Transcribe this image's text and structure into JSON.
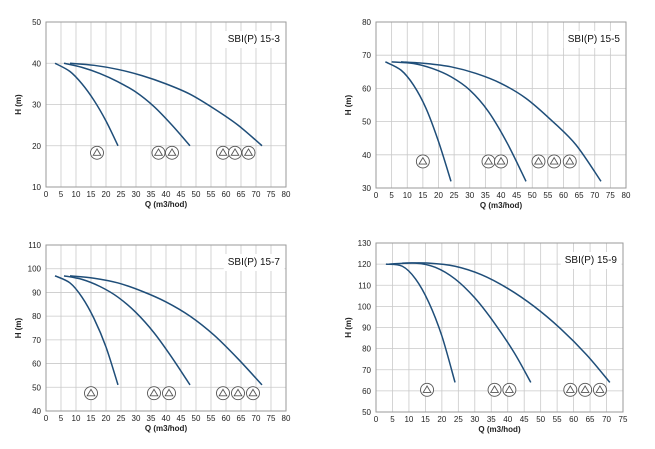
{
  "colors": {
    "curve": "#1f4e79",
    "grid": "#c9c9c9",
    "frame": "#9a9a9a",
    "marker": "#555555"
  },
  "chart_data": [
    {
      "type": "line",
      "title": "SBI(P) 15-3",
      "xlabel": "Q (m3/hod)",
      "ylabel": "H (m)",
      "xlim": [
        0,
        80
      ],
      "ylim": [
        10,
        50
      ],
      "xticks": [
        0,
        5,
        10,
        15,
        20,
        25,
        30,
        35,
        40,
        45,
        50,
        55,
        60,
        65,
        70,
        75,
        80
      ],
      "yticks": [
        10,
        20,
        30,
        40,
        50
      ],
      "grid": true,
      "series": [
        {
          "x": [
            3,
            8,
            12,
            16,
            20,
            24
          ],
          "y": [
            40,
            38,
            35,
            31,
            26,
            20
          ]
        },
        {
          "x": [
            6,
            12,
            18,
            24,
            30,
            36,
            42,
            48
          ],
          "y": [
            40,
            39,
            37.5,
            35.5,
            33,
            29.5,
            25,
            20
          ]
        },
        {
          "x": [
            8,
            16,
            24,
            32,
            40,
            48,
            56,
            64,
            72
          ],
          "y": [
            40,
            39.5,
            38.5,
            37,
            35,
            32.5,
            29,
            25,
            20
          ]
        }
      ],
      "markers": [
        {
          "x": 17,
          "y": 18.3
        },
        {
          "x": 37.5,
          "y": 18.3
        },
        {
          "x": 42,
          "y": 18.3
        },
        {
          "x": 59,
          "y": 18.3
        },
        {
          "x": 63,
          "y": 18.3
        },
        {
          "x": 67.5,
          "y": 18.3
        }
      ]
    },
    {
      "type": "line",
      "title": "SBI(P) 15-5",
      "xlabel": "Q (m3/hod)",
      "ylabel": "H (m)",
      "xlim": [
        0,
        80
      ],
      "ylim": [
        30,
        80
      ],
      "xticks": [
        0,
        5,
        10,
        15,
        20,
        25,
        30,
        35,
        40,
        45,
        50,
        55,
        60,
        65,
        70,
        75,
        80
      ],
      "yticks": [
        30,
        40,
        50,
        60,
        70,
        80
      ],
      "grid": true,
      "series": [
        {
          "x": [
            3,
            8,
            12,
            16,
            20,
            24
          ],
          "y": [
            68,
            65.5,
            61,
            54,
            44,
            32
          ]
        },
        {
          "x": [
            5,
            12,
            18,
            24,
            30,
            36,
            42,
            48
          ],
          "y": [
            68,
            67.5,
            66,
            63.5,
            59.5,
            53,
            43.5,
            32
          ]
        },
        {
          "x": [
            8,
            16,
            24,
            32,
            40,
            48,
            56,
            64,
            72
          ],
          "y": [
            68,
            67.5,
            66.5,
            64.5,
            61.5,
            57,
            50.5,
            43,
            32
          ]
        }
      ],
      "markers": [
        {
          "x": 15,
          "y": 38
        },
        {
          "x": 36,
          "y": 38
        },
        {
          "x": 40,
          "y": 38
        },
        {
          "x": 52,
          "y": 38
        },
        {
          "x": 57,
          "y": 38
        },
        {
          "x": 62,
          "y": 38
        }
      ]
    },
    {
      "type": "line",
      "title": "SBI(P) 15-7",
      "xlabel": "Q (m3/hod)",
      "ylabel": "H (m)",
      "xlim": [
        0,
        80
      ],
      "ylim": [
        40,
        110
      ],
      "xticks": [
        0,
        5,
        10,
        15,
        20,
        25,
        30,
        35,
        40,
        45,
        50,
        55,
        60,
        65,
        70,
        75,
        80
      ],
      "yticks": [
        40,
        50,
        60,
        70,
        80,
        90,
        100,
        110
      ],
      "grid": true,
      "series": [
        {
          "x": [
            3,
            8,
            12,
            16,
            20,
            24
          ],
          "y": [
            97,
            94,
            88,
            79,
            67,
            51
          ]
        },
        {
          "x": [
            6,
            12,
            18,
            24,
            30,
            36,
            42,
            48
          ],
          "y": [
            97,
            95.5,
            92.5,
            88,
            81.5,
            73,
            62.5,
            51
          ]
        },
        {
          "x": [
            8,
            16,
            24,
            32,
            40,
            48,
            56,
            64,
            72
          ],
          "y": [
            97,
            96,
            94,
            90.5,
            86,
            80,
            72,
            62,
            51
          ]
        }
      ],
      "markers": [
        {
          "x": 15,
          "y": 47.5
        },
        {
          "x": 36,
          "y": 47.5
        },
        {
          "x": 41,
          "y": 47.5
        },
        {
          "x": 59,
          "y": 47.5
        },
        {
          "x": 64,
          "y": 47.5
        },
        {
          "x": 69,
          "y": 47.5
        }
      ]
    },
    {
      "type": "line",
      "title": "SBI(P) 15-9",
      "xlabel": "Q (m3/hod)",
      "ylabel": "H (m)",
      "xlim": [
        0,
        75
      ],
      "ylim": [
        50,
        130
      ],
      "xticks": [
        0,
        5,
        10,
        15,
        20,
        25,
        30,
        35,
        40,
        45,
        50,
        55,
        60,
        65,
        70,
        75
      ],
      "yticks": [
        50,
        60,
        70,
        80,
        90,
        100,
        110,
        120,
        130
      ],
      "grid": true,
      "series": [
        {
          "x": [
            3,
            8,
            12,
            16,
            20,
            24
          ],
          "y": [
            120,
            119,
            113,
            102,
            86,
            64
          ]
        },
        {
          "x": [
            4,
            12,
            18,
            24,
            30,
            36,
            42,
            47
          ],
          "y": [
            120,
            120.5,
            118.5,
            113,
            104,
            92,
            78,
            64
          ]
        },
        {
          "x": [
            8,
            16,
            24,
            32,
            40,
            48,
            56,
            64,
            71
          ],
          "y": [
            120.5,
            120.5,
            119,
            115,
            108.5,
            100,
            89.5,
            77,
            64
          ]
        }
      ],
      "markers": [
        {
          "x": 15.5,
          "y": 60.5
        },
        {
          "x": 36,
          "y": 60.5
        },
        {
          "x": 40.5,
          "y": 60.5
        },
        {
          "x": 59,
          "y": 60.5
        },
        {
          "x": 63.5,
          "y": 60.5
        },
        {
          "x": 68,
          "y": 60.5
        }
      ]
    }
  ]
}
